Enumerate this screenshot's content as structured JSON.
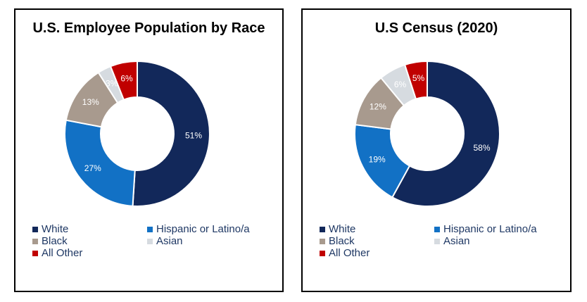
{
  "styles": {
    "legend_text_color": "#1F3864",
    "slice_label_color": "#FFFFFF",
    "panel_border_color": "#000000",
    "navy": "#12285A",
    "blue": "#1271C5",
    "taupe": "#A89A8E",
    "light_gray": "#D6DBE0",
    "red": "#C00000"
  },
  "chart_data": [
    {
      "type": "pie",
      "subtype": "donut",
      "title": "U.S. Employee Population by Race",
      "labels": [
        "White",
        "Hispanic or Latino/a",
        "Black",
        "Asian",
        "All Other"
      ],
      "values": [
        51,
        27,
        13,
        3,
        6
      ],
      "value_labels": [
        "51%",
        "27%",
        "13%",
        "3%",
        "6%"
      ],
      "colors": [
        "#12285A",
        "#1271C5",
        "#A89A8E",
        "#D6DBE0",
        "#C00000"
      ],
      "donut_hole_ratio": 0.5,
      "start_angle_deg": 0,
      "direction": "clockwise",
      "legend_position": "bottom",
      "legend_columns": 2
    },
    {
      "type": "pie",
      "subtype": "donut",
      "title": "U.S Census (2020)",
      "labels": [
        "White",
        "Hispanic or Latino/a",
        "Black",
        "Asian",
        "All Other"
      ],
      "values": [
        58,
        19,
        12,
        6,
        5
      ],
      "value_labels": [
        "58%",
        "19%",
        "12%",
        "6%",
        "5%"
      ],
      "colors": [
        "#12285A",
        "#1271C5",
        "#A89A8E",
        "#D6DBE0",
        "#C00000"
      ],
      "donut_hole_ratio": 0.5,
      "start_angle_deg": 0,
      "direction": "clockwise",
      "legend_position": "bottom",
      "legend_columns": 2
    }
  ]
}
